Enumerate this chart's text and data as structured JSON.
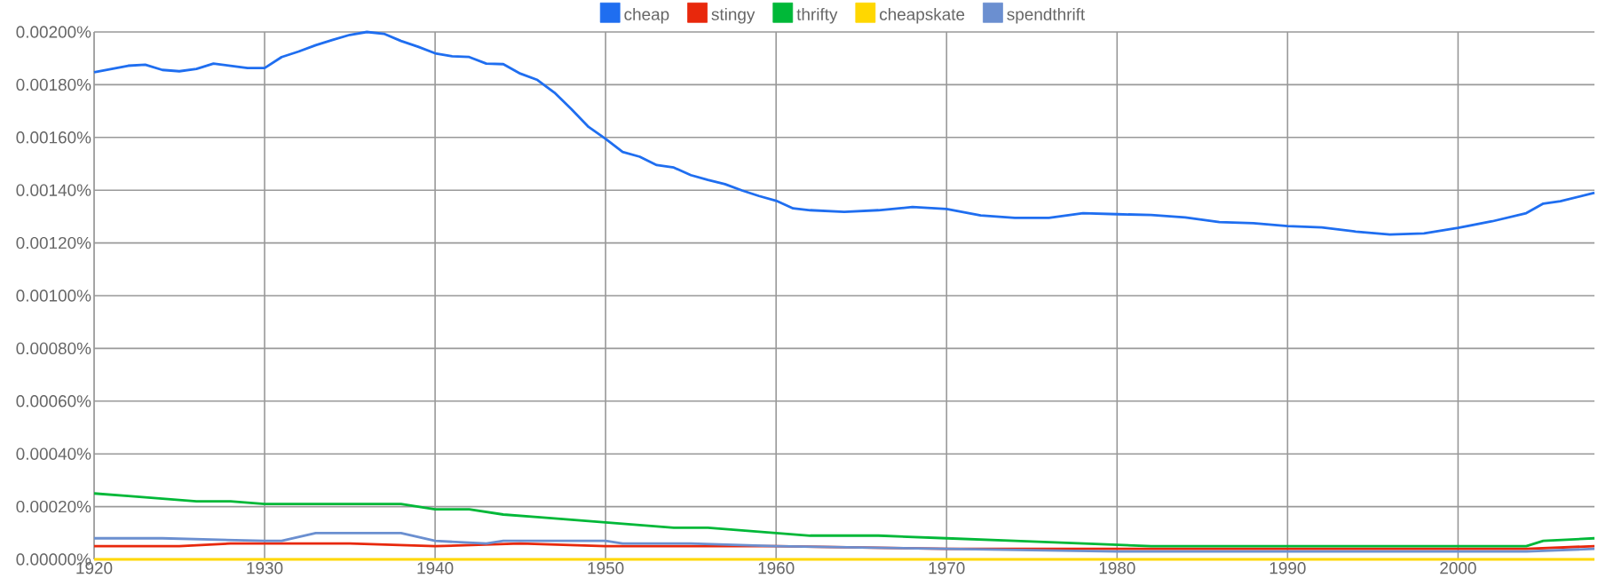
{
  "chart_data": {
    "type": "line",
    "xlim": [
      1920,
      2008
    ],
    "xticks": [
      1920,
      1930,
      1940,
      1950,
      1960,
      1970,
      1980,
      1990,
      2000
    ],
    "ylim": [
      0,
      0.002
    ],
    "yticks": [
      {
        "value": 0,
        "label": "0.00000%"
      },
      {
        "value": 0.0002,
        "label": "0.00020%"
      },
      {
        "value": 0.0004,
        "label": "0.00040%"
      },
      {
        "value": 0.0006,
        "label": "0.00060%"
      },
      {
        "value": 0.0008,
        "label": "0.00080%"
      },
      {
        "value": 0.001,
        "label": "0.00100%"
      },
      {
        "value": 0.0012,
        "label": "0.00120%"
      },
      {
        "value": 0.0014,
        "label": "0.00140%"
      },
      {
        "value": 0.0016,
        "label": "0.00160%"
      },
      {
        "value": 0.0018,
        "label": "0.00180%"
      },
      {
        "value": 0.002,
        "label": "0.00200%"
      }
    ],
    "grid": true,
    "legend": "top",
    "series": [
      {
        "name": "cheap",
        "color": "#1f6ef0",
        "x": [
          1920,
          1922,
          1923,
          1924,
          1925,
          1926,
          1927,
          1928,
          1929,
          1930,
          1931,
          1932,
          1933,
          1934,
          1935,
          1936,
          1937,
          1938,
          1939,
          1940,
          1941,
          1942,
          1943,
          1944,
          1945,
          1946,
          1947,
          1948,
          1949,
          1950,
          1951,
          1952,
          1953,
          1954,
          1955,
          1956,
          1957,
          1958,
          1959,
          1960,
          1961,
          1962,
          1964,
          1966,
          1968,
          1970,
          1972,
          1974,
          1976,
          1978,
          1980,
          1982,
          1984,
          1986,
          1988,
          1990,
          1992,
          1994,
          1996,
          1998,
          2000,
          2002,
          2004,
          2005,
          2006,
          2008
        ],
        "values": [
          0.001847,
          0.001872,
          0.001876,
          0.001856,
          0.001851,
          0.00186,
          0.00188,
          0.001872,
          0.001863,
          0.001863,
          0.001905,
          0.001926,
          0.00195,
          0.00197,
          0.001989,
          0.002,
          0.001993,
          0.001966,
          0.001944,
          0.001919,
          0.001908,
          0.001905,
          0.00188,
          0.001878,
          0.001842,
          0.001818,
          0.00177,
          0.001707,
          0.00164,
          0.001595,
          0.001545,
          0.001527,
          0.001495,
          0.001486,
          0.001457,
          0.001439,
          0.001423,
          0.001399,
          0.001378,
          0.00136,
          0.001331,
          0.001324,
          0.001318,
          0.001324,
          0.001336,
          0.001329,
          0.001304,
          0.001295,
          0.001295,
          0.001313,
          0.001309,
          0.001306,
          0.001297,
          0.001279,
          0.001275,
          0.001264,
          0.001259,
          0.001243,
          0.001232,
          0.001236,
          0.001257,
          0.001282,
          0.001313,
          0.001349,
          0.001358,
          0.00139
        ]
      },
      {
        "name": "stingy",
        "color": "#e8280c",
        "x": [
          1920,
          1925,
          1928,
          1935,
          1940,
          1945,
          1950,
          1960,
          1970,
          1980,
          1990,
          2000,
          2004,
          2008
        ],
        "values": [
          5e-05,
          5e-05,
          6e-05,
          6e-05,
          5e-05,
          6e-05,
          5e-05,
          5e-05,
          4e-05,
          4e-05,
          4e-05,
          4e-05,
          4e-05,
          5e-05
        ]
      },
      {
        "name": "thrifty",
        "color": "#00b838",
        "x": [
          1920,
          1922,
          1924,
          1926,
          1928,
          1930,
          1932,
          1934,
          1936,
          1938,
          1939,
          1940,
          1942,
          1944,
          1946,
          1948,
          1950,
          1952,
          1954,
          1956,
          1958,
          1960,
          1962,
          1966,
          1970,
          1974,
          1978,
          1982,
          1986,
          1990,
          1994,
          1998,
          2002,
          2004,
          2005,
          2008
        ],
        "values": [
          0.00025,
          0.00024,
          0.00023,
          0.00022,
          0.00022,
          0.00021,
          0.00021,
          0.00021,
          0.00021,
          0.00021,
          0.0002,
          0.00019,
          0.00019,
          0.00017,
          0.00016,
          0.00015,
          0.00014,
          0.00013,
          0.00012,
          0.00012,
          0.00011,
          0.0001,
          9e-05,
          9e-05,
          8e-05,
          7e-05,
          6e-05,
          5e-05,
          5e-05,
          5e-05,
          5e-05,
          5e-05,
          5e-05,
          5e-05,
          7e-05,
          8e-05
        ]
      },
      {
        "name": "cheapskate",
        "color": "#ffd700",
        "x": [
          1920,
          1960,
          2000,
          2008
        ],
        "values": [
          0,
          0,
          0,
          0
        ]
      },
      {
        "name": "spendthrift",
        "color": "#6b8fd0",
        "x": [
          1920,
          1924,
          1930,
          1931,
          1933,
          1936,
          1938,
          1940,
          1943,
          1944,
          1949,
          1950,
          1951,
          1955,
          1960,
          1970,
          1980,
          1990,
          2000,
          2004,
          2008
        ],
        "values": [
          8e-05,
          8e-05,
          7e-05,
          7e-05,
          0.0001,
          0.0001,
          0.0001,
          7e-05,
          6e-05,
          7e-05,
          7e-05,
          7e-05,
          6e-05,
          6e-05,
          5e-05,
          4e-05,
          3e-05,
          3e-05,
          3e-05,
          3e-05,
          4e-05
        ]
      }
    ]
  }
}
